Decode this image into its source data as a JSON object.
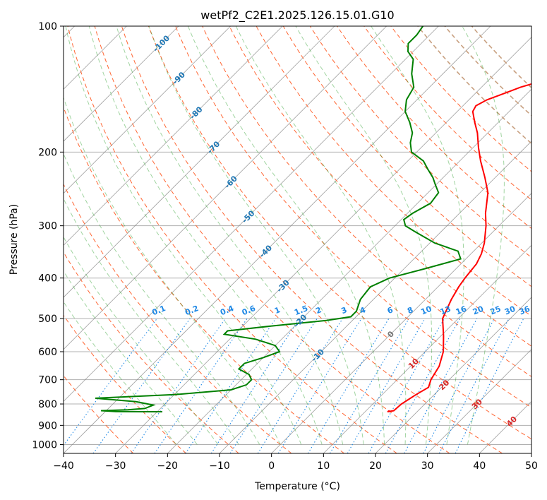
{
  "chart_data": {
    "type": "line",
    "title": "wetPf2_C2E1.2025.126.15.01.G10",
    "xlabel": "Temperature (°C)",
    "ylabel": "Pressure (hPa)",
    "xlim": [
      -40,
      50
    ],
    "ylim": [
      1050,
      100
    ],
    "y_scale": "log",
    "skew": 45,
    "x_ticks": [
      -40,
      -30,
      -20,
      -10,
      0,
      10,
      20,
      30,
      40,
      50
    ],
    "y_ticks": [
      1000,
      900,
      800,
      700,
      600,
      500,
      400,
      300,
      200,
      100
    ],
    "grid": true,
    "colors": {
      "temperature": "#ff0000",
      "dewpoint": "#008000",
      "isotherm": "#808080",
      "dry_adiabat": "#ff6633",
      "moist_adiabat": "#2ca02c",
      "mixing_ratio": "#1e88e5",
      "isotherm_label": "#1f77b4",
      "temp_label_red": "#d62728",
      "zero_label": "#777777",
      "dry_adiabat_far": "#c8a080"
    },
    "series": [
      {
        "key": "temperature",
        "color": "#ff0000",
        "points": [
          [
            830,
            14.5
          ],
          [
            835,
            14.3
          ],
          [
            830,
            15.3
          ],
          [
            800,
            15.5
          ],
          [
            780,
            16.0
          ],
          [
            760,
            16.5
          ],
          [
            730,
            17.5
          ],
          [
            700,
            16.5
          ],
          [
            650,
            15.5
          ],
          [
            600,
            13.5
          ],
          [
            550,
            10.5
          ],
          [
            500,
            7.0
          ],
          [
            450,
            5.0
          ],
          [
            420,
            4.0
          ],
          [
            400,
            3.5
          ],
          [
            370,
            3.0
          ],
          [
            350,
            2.0
          ],
          [
            330,
            0.5
          ],
          [
            300,
            -2.5
          ],
          [
            280,
            -5.0
          ],
          [
            250,
            -8.5
          ],
          [
            230,
            -12.0
          ],
          [
            210,
            -16.0
          ],
          [
            195,
            -19.0
          ],
          [
            180,
            -22.0
          ],
          [
            170,
            -24.5
          ],
          [
            160,
            -27.0
          ],
          [
            155,
            -27.5
          ],
          [
            150,
            -26.5
          ],
          [
            145,
            -24.5
          ],
          [
            140,
            -22.5
          ],
          [
            135,
            -19.5
          ],
          [
            130,
            -16.5
          ],
          [
            125,
            -13.5
          ],
          [
            118,
            -11.5
          ],
          [
            110,
            -11.5
          ],
          [
            100,
            -12.5
          ]
        ]
      },
      {
        "key": "dewpoint",
        "color": "#008000",
        "points": [
          [
            835,
            -29.0
          ],
          [
            835,
            -32.0
          ],
          [
            834,
            -38.0
          ],
          [
            830,
            -41.0
          ],
          [
            826,
            -36.0
          ],
          [
            820,
            -33.0
          ],
          [
            805,
            -32.0
          ],
          [
            790,
            -36.0
          ],
          [
            775,
            -44.5
          ],
          [
            760,
            -30.0
          ],
          [
            740,
            -20.0
          ],
          [
            720,
            -18.0
          ],
          [
            700,
            -18.0
          ],
          [
            680,
            -19.5
          ],
          [
            660,
            -22.5
          ],
          [
            640,
            -22.5
          ],
          [
            620,
            -20.0
          ],
          [
            600,
            -18.0
          ],
          [
            580,
            -20.0
          ],
          [
            560,
            -25.0
          ],
          [
            545,
            -32.0
          ],
          [
            535,
            -32.0
          ],
          [
            520,
            -24.0
          ],
          [
            505,
            -15.0
          ],
          [
            495,
            -11.0
          ],
          [
            480,
            -11.0
          ],
          [
            450,
            -12.5
          ],
          [
            420,
            -13.0
          ],
          [
            400,
            -11.0
          ],
          [
            380,
            -6.0
          ],
          [
            360,
            -1.0
          ],
          [
            345,
            -3.0
          ],
          [
            330,
            -9.0
          ],
          [
            310,
            -15.0
          ],
          [
            300,
            -18.0
          ],
          [
            290,
            -19.5
          ],
          [
            280,
            -19.0
          ],
          [
            265,
            -17.5
          ],
          [
            250,
            -18.0
          ],
          [
            240,
            -20.0
          ],
          [
            230,
            -22.0
          ],
          [
            220,
            -24.5
          ],
          [
            210,
            -27.0
          ],
          [
            200,
            -31.0
          ],
          [
            190,
            -33.0
          ],
          [
            180,
            -34.5
          ],
          [
            170,
            -37.0
          ],
          [
            160,
            -40.0
          ],
          [
            150,
            -42.0
          ],
          [
            140,
            -43.0
          ],
          [
            130,
            -46.0
          ],
          [
            120,
            -48.5
          ],
          [
            115,
            -51.0
          ],
          [
            110,
            -52.5
          ],
          [
            105,
            -52.5
          ],
          [
            100,
            -53.0
          ]
        ]
      }
    ],
    "isotherm_labels": [
      "-100",
      "-90",
      "-80",
      "-70",
      "-60",
      "-50",
      "-40",
      "-30",
      "-20",
      "-10"
    ],
    "isotherm_label_values": [
      -100,
      -90,
      -80,
      -70,
      -60,
      -50,
      -40,
      -30,
      -20,
      -10
    ],
    "mixing_ratio_labels": [
      "0.1",
      "0.2",
      "0.4",
      "0.6",
      "1",
      "1.5",
      "2",
      "3",
      "4",
      "6",
      "8",
      "10",
      "13",
      "16",
      "20",
      "25",
      "30",
      "36"
    ],
    "mixing_ratio_values": [
      0.1,
      0.2,
      0.4,
      0.6,
      1,
      1.5,
      2,
      3,
      4,
      6,
      8,
      10,
      13,
      16,
      20,
      25,
      30,
      36
    ],
    "zero_label": "0",
    "temperature_labels": [
      "10",
      "20",
      "30",
      "40"
    ],
    "temperature_label_values": [
      10,
      20,
      30,
      40
    ]
  }
}
